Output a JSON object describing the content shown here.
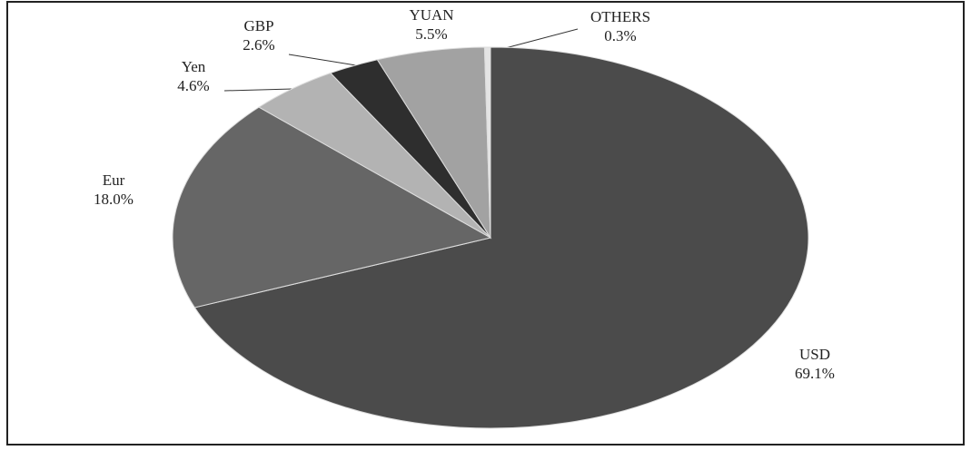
{
  "chart_data": {
    "type": "pie",
    "categories": [
      "USD",
      "Eur",
      "Yen",
      "GBP",
      "YUAN",
      "OTHERS"
    ],
    "values": [
      69.1,
      18.0,
      4.6,
      2.6,
      5.5,
      0.3
    ],
    "value_labels": [
      "69.1%",
      "18.0%",
      "4.6%",
      "2.6%",
      "5.5%",
      "0.3%"
    ],
    "colors": [
      "#4b4b4b",
      "#666666",
      "#b3b3b3",
      "#2e2e2e",
      "#a2a2a2",
      "#e4e4e4"
    ]
  }
}
